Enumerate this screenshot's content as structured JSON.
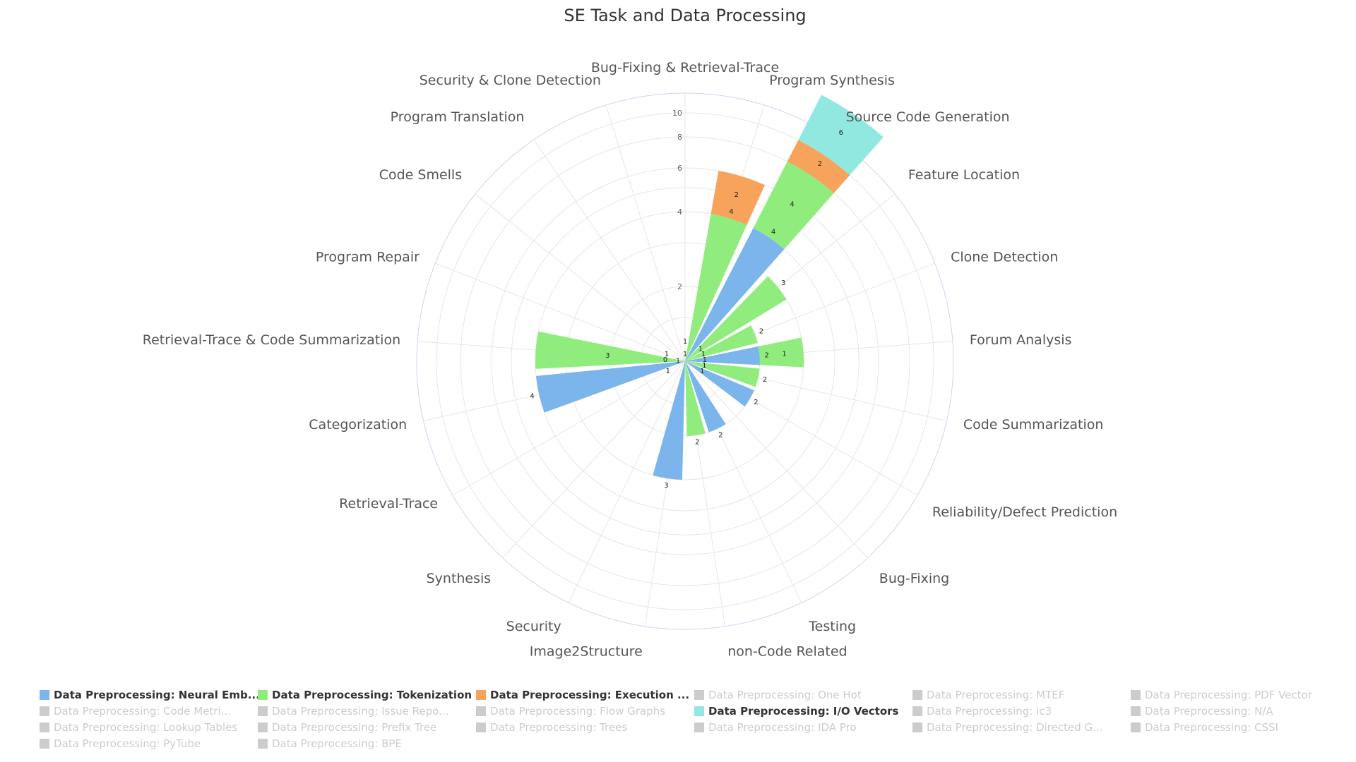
{
  "chart_data": {
    "type": "bar",
    "subtype": "polar-stacked-bar",
    "title": "SE Task and Data Processing",
    "categories": [
      "Bug-Fixing & Retrieval-Trace",
      "Program Synthesis",
      "Source Code Generation",
      "Feature Location",
      "Clone Detection",
      "Forum Analysis",
      "Code Summarization",
      "Reliability/Defect Prediction",
      "Bug-Fixing",
      "Testing",
      "non-Code Related",
      "Image2Structure",
      "Security",
      "Synthesis",
      "Retrieval-Trace",
      "Categorization",
      "Retrieval-Trace & Code Summarization",
      "Program Repair",
      "Code Smells",
      "Program Translation",
      "Security & Clone Detection"
    ],
    "radial_axis": {
      "scale": "log",
      "ticks": [
        2,
        4,
        6,
        8,
        10
      ],
      "range": [
        1,
        12
      ]
    },
    "series": [
      {
        "name": "Data Preprocessing: Neural Emb...",
        "color": "#7cb5ec",
        "values": [
          1,
          0,
          4,
          0,
          0,
          2,
          0,
          2,
          0,
          2,
          0,
          3,
          0,
          0,
          0,
          4,
          1,
          0,
          0,
          0,
          0
        ]
      },
      {
        "name": "Data Preprocessing: Tokenization",
        "color": "#90ed7d",
        "values": [
          0,
          4,
          4,
          3,
          2,
          1,
          2,
          0,
          0,
          0,
          2,
          0,
          0,
          0,
          0,
          0,
          3,
          0,
          0,
          0,
          0
        ]
      },
      {
        "name": "Data Preprocessing: Execution ...",
        "color": "#f7a35c",
        "values": [
          0,
          2,
          2,
          0,
          0,
          0,
          0,
          0,
          0,
          0,
          0,
          0,
          0,
          0,
          0,
          0,
          0,
          0,
          0,
          0,
          0
        ]
      },
      {
        "name": "Data Preprocessing: I/O Vectors",
        "color": "#91e8e1",
        "values": [
          0,
          0,
          6,
          0,
          0,
          0,
          0,
          0,
          0,
          0,
          0,
          0,
          0,
          0,
          0,
          0,
          0,
          0,
          0,
          0,
          0
        ]
      }
    ],
    "small_labels": [
      {
        "category": "Bug-Fixing & Retrieval-Trace",
        "text": "1"
      },
      {
        "category": "Feature Location",
        "text": "1"
      },
      {
        "category": "Clone Detection",
        "text": "1"
      },
      {
        "category": "Forum Analysis",
        "text": "1"
      },
      {
        "category": "Code Summarization",
        "text": "1"
      },
      {
        "category": "Reliability/Defect Prediction",
        "text": "1"
      },
      {
        "category": "Retrieval-Trace",
        "text": "1"
      },
      {
        "category": "Retrieval-Trace & Code Summarization",
        "text": "0"
      },
      {
        "category": "Program Repair",
        "text": "1"
      }
    ],
    "legend": {
      "position": "bottom",
      "items": [
        {
          "label": "Data Preprocessing: Neural Emb...",
          "color": "#7cb5ec",
          "active": true
        },
        {
          "label": "Data Preprocessing: Tokenization",
          "color": "#90ed7d",
          "active": true
        },
        {
          "label": "Data Preprocessing: Execution ...",
          "color": "#f7a35c",
          "active": true
        },
        {
          "label": "Data Preprocessing: One Hot",
          "color": "#cccccc",
          "active": false
        },
        {
          "label": "Data Preprocessing: MTEF",
          "color": "#cccccc",
          "active": false
        },
        {
          "label": "Data Preprocessing: PDF Vector",
          "color": "#cccccc",
          "active": false
        },
        {
          "label": "Data Preprocessing: Code Metri...",
          "color": "#cccccc",
          "active": false
        },
        {
          "label": "Data Preprocessing: Issue Repo...",
          "color": "#cccccc",
          "active": false
        },
        {
          "label": "Data Preprocessing: Flow Graphs",
          "color": "#cccccc",
          "active": false
        },
        {
          "label": "Data Preprocessing: I/O Vectors",
          "color": "#91e8e1",
          "active": true
        },
        {
          "label": "Data Preprocessing: ic3",
          "color": "#cccccc",
          "active": false
        },
        {
          "label": "Data Preprocessing: N/A",
          "color": "#cccccc",
          "active": false
        },
        {
          "label": "Data Preprocessing: Lookup Tables",
          "color": "#cccccc",
          "active": false
        },
        {
          "label": "Data Preprocessing: Prefix Tree",
          "color": "#cccccc",
          "active": false
        },
        {
          "label": "Data Preprocessing: Trees",
          "color": "#cccccc",
          "active": false
        },
        {
          "label": "Data Preprocessing: IDA Pro",
          "color": "#cccccc",
          "active": false
        },
        {
          "label": "Data Preprocessing: Directed G...",
          "color": "#cccccc",
          "active": false
        },
        {
          "label": "Data Preprocessing: CSSI",
          "color": "#cccccc",
          "active": false
        },
        {
          "label": "Data Preprocessing: PyTube",
          "color": "#cccccc",
          "active": false
        },
        {
          "label": "Data Preprocessing: BPE",
          "color": "#cccccc",
          "active": false
        }
      ]
    },
    "grid": true
  }
}
